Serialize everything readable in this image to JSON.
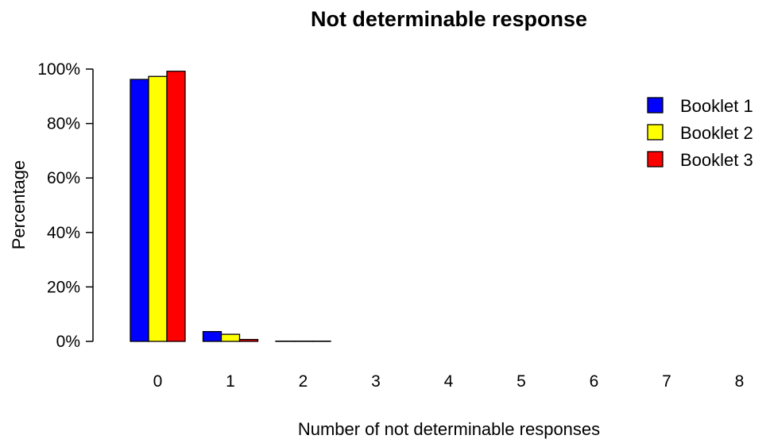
{
  "chart_data": {
    "type": "bar",
    "title": "Not determinable response",
    "xlabel": "Number of not determinable responses",
    "ylabel": "Percentage",
    "categories": [
      "0",
      "1",
      "2",
      "3",
      "4",
      "5",
      "6",
      "7",
      "8"
    ],
    "series": [
      {
        "name": "Booklet 1",
        "color": "#0000ff",
        "values": [
          96.2,
          3.6,
          0.1,
          0,
          0,
          0,
          0,
          0,
          0
        ]
      },
      {
        "name": "Booklet 2",
        "color": "#ffff00",
        "values": [
          97.3,
          2.6,
          0.1,
          0,
          0,
          0,
          0,
          0,
          0
        ]
      },
      {
        "name": "Booklet 3",
        "color": "#ff0000",
        "values": [
          99.2,
          0.7,
          0.1,
          0,
          0,
          0,
          0,
          0,
          0
        ]
      }
    ],
    "yticks": [
      "0%",
      "20%",
      "40%",
      "60%",
      "80%",
      "100%"
    ],
    "ytick_values": [
      0,
      20,
      40,
      60,
      80,
      100
    ],
    "ylim": [
      0,
      100
    ],
    "grid": false,
    "legend_position": "top-right"
  }
}
